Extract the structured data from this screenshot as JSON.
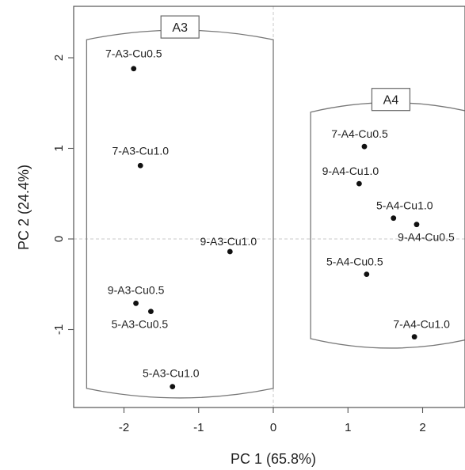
{
  "chart_data": {
    "type": "scatter",
    "title": "",
    "xlabel": "PC 1 (65.8%)",
    "ylabel": "PC 2 (24.4%)",
    "xlim": [
      -2.7,
      2.6
    ],
    "ylim": [
      -1.9,
      2.5
    ],
    "xticks": [
      -2,
      -1,
      0,
      1,
      2
    ],
    "yticks": [
      -1,
      0,
      1,
      2
    ],
    "xtick_labels": [
      "-2",
      "-1",
      "0",
      "1",
      "2"
    ],
    "ytick_labels": [
      "-1",
      "0",
      "1",
      "2"
    ],
    "reference_lines": {
      "x": 0,
      "y": 0,
      "style": "dashed"
    },
    "groups": [
      {
        "name": "A3",
        "x_range": [
          -2.5,
          0
        ],
        "y_range": [
          -1.65,
          2.2
        ]
      },
      {
        "name": "A4",
        "x_range": [
          0.5,
          2.65
        ],
        "y_range": [
          -1.1,
          1.4
        ]
      }
    ],
    "points": [
      {
        "label": "7-A3-Cu0.5",
        "x": -1.87,
        "y": 1.88
      },
      {
        "label": "7-A3-Cu1.0",
        "x": -1.78,
        "y": 0.81
      },
      {
        "label": "9-A3-Cu1.0",
        "x": -0.58,
        "y": -0.14
      },
      {
        "label": "9-A3-Cu0.5",
        "x": -1.84,
        "y": -0.71
      },
      {
        "label": "5-A3-Cu0.5",
        "x": -1.64,
        "y": -0.8
      },
      {
        "label": "5-A3-Cu1.0",
        "x": -1.35,
        "y": -1.63
      },
      {
        "label": "7-A4-Cu0.5",
        "x": 1.22,
        "y": 1.02
      },
      {
        "label": "9-A4-Cu1.0",
        "x": 1.15,
        "y": 0.61
      },
      {
        "label": "5-A4-Cu1.0",
        "x": 1.61,
        "y": 0.23
      },
      {
        "label": "9-A4-Cu0.5",
        "x": 1.92,
        "y": 0.16
      },
      {
        "label": "5-A4-Cu0.5",
        "x": 1.25,
        "y": -0.39
      },
      {
        "label": "7-A4-Cu1.0",
        "x": 1.89,
        "y": -1.08
      }
    ],
    "grid": false,
    "legend": "none"
  }
}
